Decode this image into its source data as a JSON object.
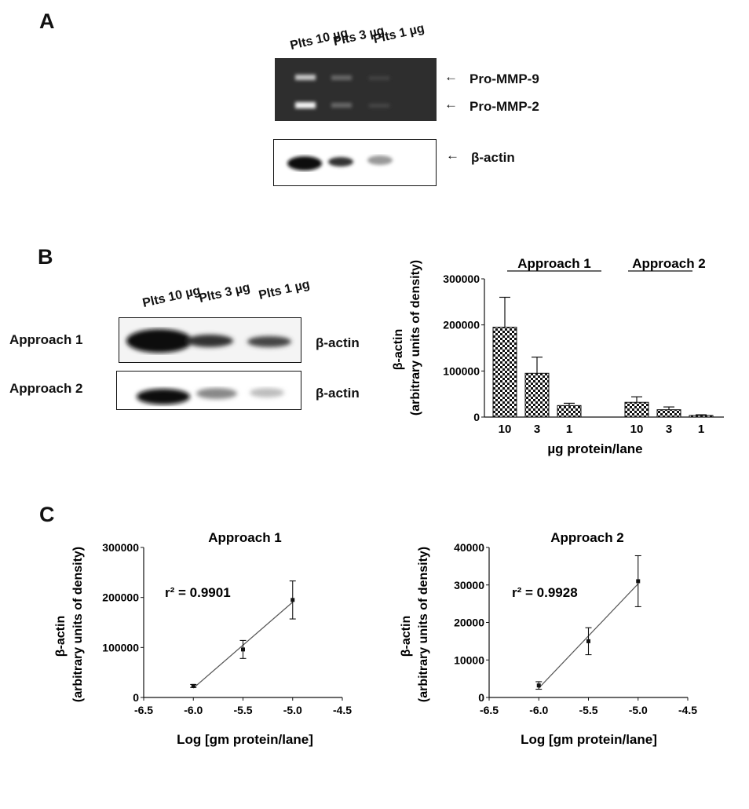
{
  "panels": {
    "A": "A",
    "B": "B",
    "C": "C"
  },
  "panelA": {
    "lanes": [
      "Plts 10 µg",
      "Plts 3 µg",
      "Plts 1 µg"
    ],
    "zymo_labels": [
      "Pro-MMP-9",
      "Pro-MMP-2"
    ],
    "western_label": "β-actin"
  },
  "panelB": {
    "lanes": [
      "Plts 10 µg",
      "Plts 3 µg",
      "Plts 1 µg"
    ],
    "rows": [
      {
        "name": "Approach 1",
        "band": "β-actin"
      },
      {
        "name": "Approach 2",
        "band": "β-actin"
      }
    ]
  },
  "chart_data": [
    {
      "type": "bar",
      "groups": [
        "Approach 1",
        "Approach 2"
      ],
      "categories": [
        "10",
        "3",
        "1"
      ],
      "series": [
        {
          "name": "Approach 1",
          "values": [
            195000,
            95000,
            25000
          ],
          "errors": [
            65000,
            35000,
            5000
          ]
        },
        {
          "name": "Approach 2",
          "values": [
            32000,
            16000,
            3500
          ],
          "errors": [
            12000,
            6000,
            1500
          ]
        }
      ],
      "xlabel": "µg protein/lane",
      "ylabel": "β-actin",
      "ylabel2": "(arbitrary units of density)",
      "ylim": [
        0,
        300000
      ],
      "yticks": [
        "0",
        "100000",
        "200000",
        "300000"
      ]
    },
    {
      "type": "scatter",
      "title": "Approach 1",
      "annotation": "r² = 0.9901",
      "x": [
        -6.0,
        -5.5,
        -5.0
      ],
      "y": [
        23000,
        96000,
        195000
      ],
      "errors": [
        3000,
        18000,
        38000
      ],
      "fit_line": true,
      "xlabel": "Log [gm protein/lane]",
      "ylabel": "β-actin",
      "ylabel2": "(arbitrary units of density)",
      "xlim": [
        -6.5,
        -4.5
      ],
      "ylim": [
        0,
        300000
      ],
      "xticks": [
        "-6.5",
        "-6.0",
        "-5.5",
        "-5.0",
        "-4.5"
      ],
      "yticks": [
        "0",
        "100000",
        "200000",
        "300000"
      ]
    },
    {
      "type": "scatter",
      "title": "Approach 2",
      "annotation": "r² = 0.9928",
      "x": [
        -6.0,
        -5.5,
        -5.0
      ],
      "y": [
        3200,
        15000,
        31000
      ],
      "errors": [
        1000,
        3600,
        6800
      ],
      "fit_line": true,
      "xlabel": "Log [gm protein/lane]",
      "ylabel": "β-actin",
      "ylabel2": "(arbitrary units of density)",
      "xlim": [
        -6.5,
        -4.5
      ],
      "ylim": [
        0,
        40000
      ],
      "xticks": [
        "-6.5",
        "-6.0",
        "-5.5",
        "-5.0",
        "-4.5"
      ],
      "yticks": [
        "0",
        "10000",
        "20000",
        "30000",
        "40000"
      ]
    }
  ]
}
